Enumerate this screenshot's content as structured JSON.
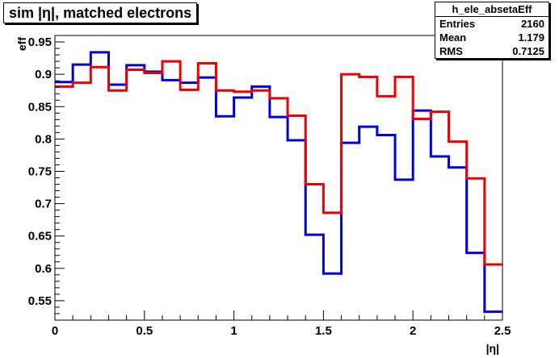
{
  "chart_data": {
    "type": "line",
    "title": "sim |η|, matched electrons",
    "xlabel": "|η|",
    "ylabel": "eff",
    "xlim": [
      0,
      2.5
    ],
    "ylim": [
      0.52,
      0.96
    ],
    "x_ticks": [
      0,
      0.5,
      1,
      1.5,
      2,
      2.5
    ],
    "x_tick_labels": [
      "0",
      "0.5",
      "1",
      "1.5",
      "2",
      "2.5"
    ],
    "y_ticks": [
      0.55,
      0.6,
      0.65,
      0.7,
      0.75,
      0.8,
      0.85,
      0.9,
      0.95
    ],
    "y_tick_labels": [
      "0.55",
      "0.6",
      "0.65",
      "0.7",
      "0.75",
      "0.8",
      "0.85",
      "0.9",
      "0.95"
    ],
    "grid": false,
    "bin_edges": [
      0,
      0.1,
      0.2,
      0.3,
      0.4,
      0.5,
      0.6,
      0.7,
      0.8,
      0.9,
      1.0,
      1.1,
      1.2,
      1.3,
      1.4,
      1.5,
      1.6,
      1.7,
      1.8,
      1.9,
      2.0,
      2.1,
      2.2,
      2.3,
      2.4,
      2.5
    ],
    "series": [
      {
        "color": "#0000dd",
        "values": [
          0.888,
          0.915,
          0.934,
          0.884,
          0.914,
          0.904,
          0.891,
          0.887,
          0.895,
          0.835,
          0.864,
          0.881,
          0.834,
          0.798,
          0.652,
          0.592,
          0.794,
          0.819,
          0.806,
          0.737,
          0.844,
          0.773,
          0.756,
          0.624,
          0.533
        ]
      },
      {
        "color": "#ee0000",
        "values": [
          0.881,
          0.887,
          0.911,
          0.875,
          0.907,
          0.902,
          0.92,
          0.876,
          0.917,
          0.875,
          0.873,
          0.875,
          0.863,
          0.836,
          0.73,
          0.686,
          0.9,
          0.896,
          0.866,
          0.896,
          0.831,
          0.842,
          0.796,
          0.739,
          0.606
        ]
      }
    ]
  },
  "stats": {
    "name": "h_ele_absetaEff",
    "rows": [
      {
        "label": "Entries",
        "value": "2160"
      },
      {
        "label": "Mean",
        "value": "1.179"
      },
      {
        "label": "RMS",
        "value": "0.7125"
      }
    ]
  }
}
